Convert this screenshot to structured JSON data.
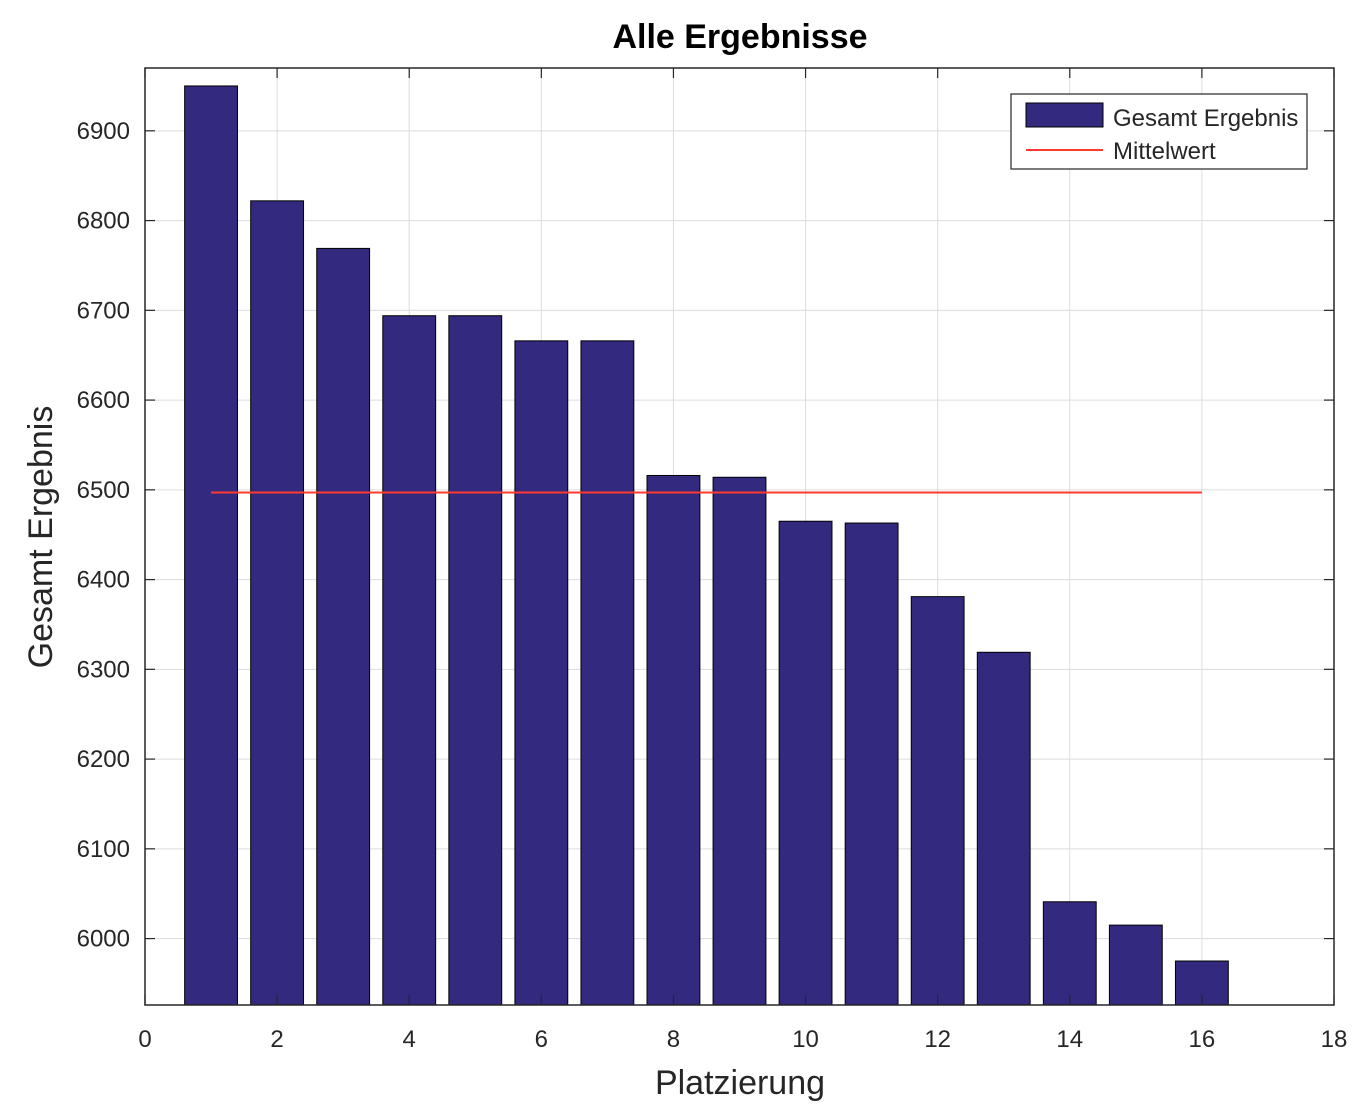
{
  "chart_data": {
    "type": "bar",
    "title": "Alle Ergebnisse",
    "xlabel": "Platzierung",
    "ylabel": "Gesamt Ergebnis",
    "x": [
      1,
      2,
      3,
      4,
      5,
      6,
      7,
      8,
      9,
      10,
      11,
      12,
      13,
      14,
      15,
      16
    ],
    "series": [
      {
        "name": "Gesamt Ergebnis",
        "type": "bar",
        "color": "#33297f",
        "values": [
          6950,
          6822,
          6769,
          6694,
          6694,
          6666,
          6666,
          6516,
          6514,
          6465,
          6463,
          6381,
          6319,
          6041,
          6015,
          5975
        ]
      },
      {
        "name": "Mittelwert",
        "type": "line",
        "color": "#ff3b30",
        "x_range": [
          1,
          16
        ],
        "value": 6497
      }
    ],
    "xlim": [
      0,
      18
    ],
    "ylim": [
      5926,
      6970
    ],
    "xticks": [
      0,
      2,
      4,
      6,
      8,
      10,
      12,
      14,
      16,
      18
    ],
    "yticks": [
      6000,
      6100,
      6200,
      6300,
      6400,
      6500,
      6600,
      6700,
      6800,
      6900
    ],
    "grid": true,
    "legend_position": "top-right"
  }
}
